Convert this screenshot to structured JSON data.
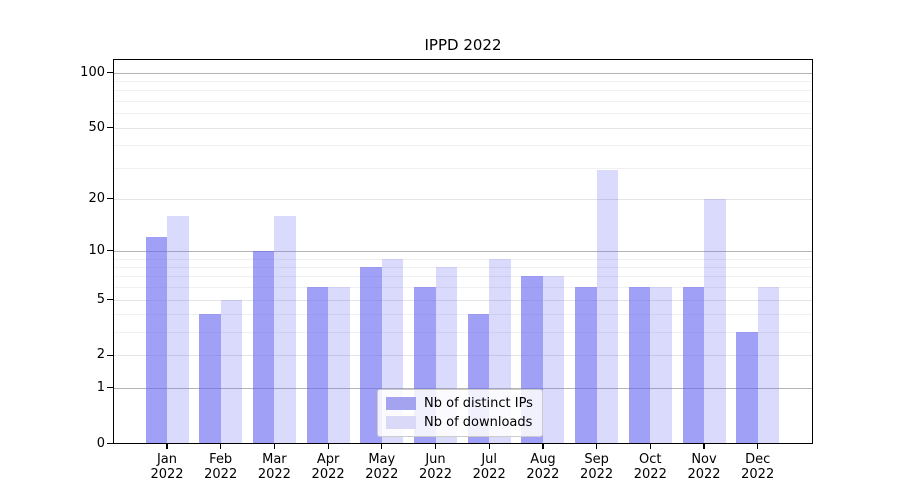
{
  "title": "IPPD 2022",
  "chart_data": {
    "type": "bar",
    "title": "IPPD 2022",
    "xlabel": "",
    "ylabel": "",
    "categories": [
      "Jan",
      "Feb",
      "Mar",
      "Apr",
      "May",
      "Jun",
      "Jul",
      "Aug",
      "Sep",
      "Oct",
      "Nov",
      "Dec"
    ],
    "year_label": "2022",
    "series": [
      {
        "name": "Nb of distinct IPs",
        "values": [
          12,
          4,
          10,
          6,
          8,
          6,
          4,
          7,
          6,
          6,
          6,
          3
        ],
        "bar_color_rgba": "rgba(102,102,242,0.62)",
        "legend_color": "#a3a3f0"
      },
      {
        "name": "Nb of downloads",
        "values": [
          16,
          5,
          16,
          6,
          9,
          8,
          9,
          7,
          29,
          6,
          20,
          6
        ],
        "bar_color_rgba": "rgba(102,102,242,0.24)",
        "legend_color": "#dadaf8"
      }
    ],
    "yscale": "log(1+x)",
    "ylim": [
      0,
      120
    ],
    "ytick_values": [
      0,
      1,
      2,
      5,
      10,
      20,
      50,
      100
    ],
    "ytick_labels": [
      "0",
      "1",
      "2",
      "5",
      "10",
      "20",
      "50",
      "100"
    ],
    "minor_gridline_values": [
      3,
      4,
      6,
      7,
      8,
      9,
      30,
      40,
      60,
      70,
      80,
      90
    ],
    "grid": "on",
    "legend_position": "lower center",
    "colors": {
      "grid_pow10": "#b4b4b4",
      "grid_mid": "#e4e4e4",
      "grid_minor": "#f0f0f0",
      "axis": "#000000",
      "background": "#ffffff"
    }
  },
  "legend": {
    "items": [
      {
        "label": "Nb of distinct IPs"
      },
      {
        "label": "Nb of downloads"
      }
    ]
  }
}
